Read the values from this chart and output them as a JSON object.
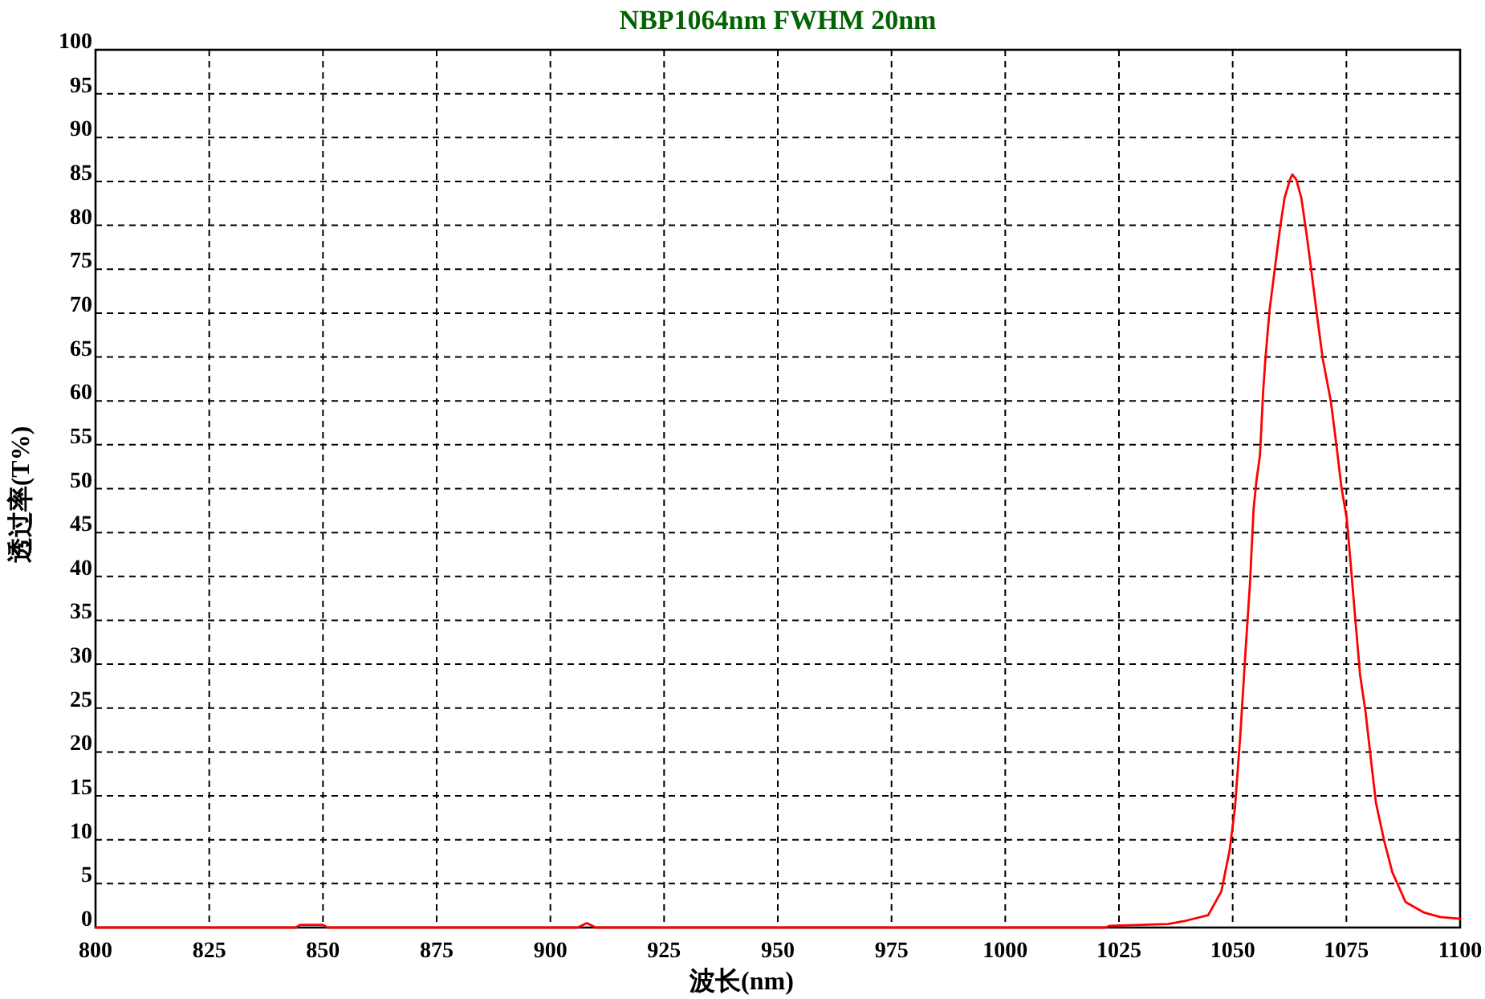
{
  "chart_data": {
    "type": "line",
    "title": "NBP1064nm FWHM 20nm",
    "xlabel": "波长(nm)",
    "ylabel": "透过率(T%)",
    "x": [
      800,
      844,
      845,
      850,
      851,
      906,
      908,
      910,
      1022,
      1023,
      1035.8,
      1039.9,
      1044.6,
      1047.5,
      1049.3,
      1050.5,
      1051.7,
      1052.8,
      1053.8,
      1054.6,
      1055.2,
      1056,
      1056.7,
      1057.2,
      1058.1,
      1059.3,
      1060.5,
      1061.4,
      1062.6,
      1063.1,
      1064,
      1065.1,
      1066.3,
      1067.5,
      1068.7,
      1069.8,
      1071.6,
      1072.8,
      1073.9,
      1075.1,
      1075.7,
      1076.8,
      1078,
      1079.2,
      1080.4,
      1081.5,
      1083.3,
      1085.1,
      1088,
      1092.1,
      1095.6,
      1100
    ],
    "series": [
      {
        "color": "#ff0000",
        "values": [
          0,
          0,
          0.3,
          0.3,
          0,
          0,
          0.5,
          0,
          0,
          0.2,
          0.4,
          0.8,
          1.4,
          4.1,
          8.7,
          13.6,
          22.1,
          31.3,
          39.2,
          47.7,
          50.8,
          53.8,
          61.1,
          64.8,
          70.3,
          75.2,
          80.0,
          83.1,
          85.2,
          85.8,
          85.2,
          83.1,
          78.8,
          74.0,
          69.1,
          64.8,
          59.9,
          55.0,
          50.2,
          46.5,
          42.9,
          36.1,
          28.8,
          24.6,
          19.1,
          14.2,
          9.9,
          6.3,
          2.9,
          1.7,
          1.2,
          1.0
        ]
      }
    ],
    "xlim": [
      800,
      1100
    ],
    "ylim": [
      0,
      100
    ],
    "xticks": [
      800,
      825,
      850,
      875,
      900,
      925,
      950,
      975,
      1000,
      1025,
      1050,
      1075,
      1100
    ],
    "yticks": [
      0,
      5,
      10,
      15,
      20,
      25,
      30,
      35,
      40,
      45,
      50,
      55,
      60,
      65,
      70,
      75,
      80,
      85,
      90,
      95,
      100
    ],
    "grid": true,
    "marker": "none",
    "line_style": "solid"
  }
}
